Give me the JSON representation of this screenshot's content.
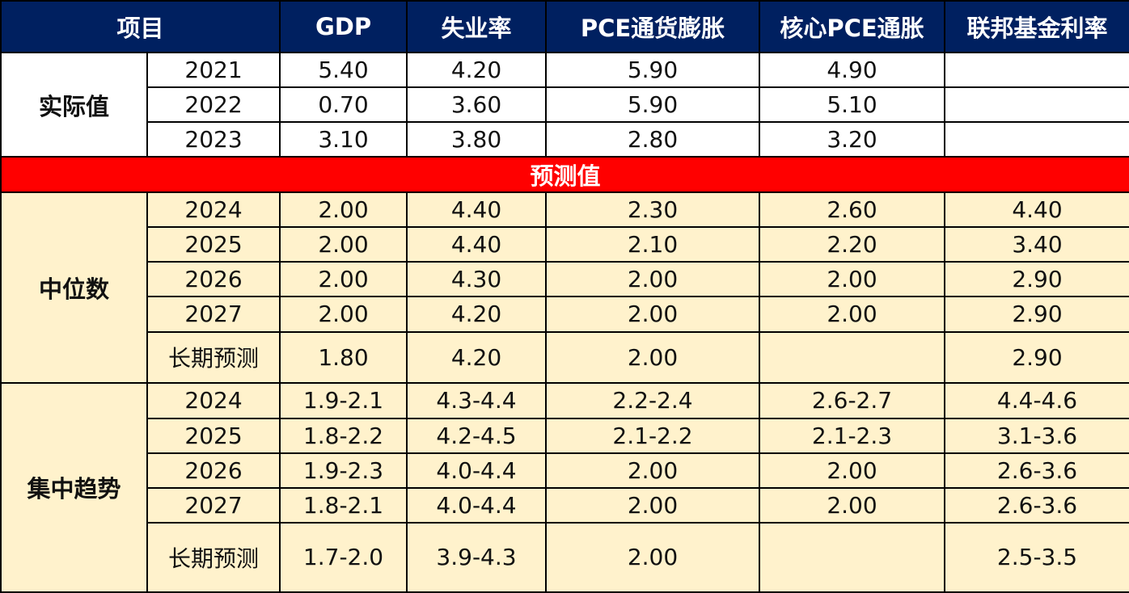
{
  "colors": {
    "header_bg": "#002060",
    "header_text": "#ffffff",
    "divider_bg": "#ff0000",
    "forecast_bg": "#fff2cc",
    "actual_bg": "#ffffff",
    "border": "#000000"
  },
  "table": {
    "headers": [
      "项目",
      "GDP",
      "失业率",
      "PCE通货膨胀",
      "核心PCE通胀",
      "联邦基金利率"
    ],
    "actual": {
      "label": "实际值",
      "rows": [
        {
          "period": "2021",
          "values": [
            "5.40",
            "4.20",
            "5.90",
            "4.90",
            ""
          ]
        },
        {
          "period": "2022",
          "values": [
            "0.70",
            "3.60",
            "5.90",
            "5.10",
            ""
          ]
        },
        {
          "period": "2023",
          "values": [
            "3.10",
            "3.80",
            "2.80",
            "3.20",
            ""
          ]
        }
      ]
    },
    "forecast_divider": "预测值",
    "median": {
      "label": "中位数",
      "rows": [
        {
          "period": "2024",
          "values": [
            "2.00",
            "4.40",
            "2.30",
            "2.60",
            "4.40"
          ]
        },
        {
          "period": "2025",
          "values": [
            "2.00",
            "4.40",
            "2.10",
            "2.20",
            "3.40"
          ]
        },
        {
          "period": "2026",
          "values": [
            "2.00",
            "4.30",
            "2.00",
            "2.00",
            "2.90"
          ]
        },
        {
          "period": "2027",
          "values": [
            "2.00",
            "4.20",
            "2.00",
            "2.00",
            "2.90"
          ]
        },
        {
          "period": "长期预测",
          "values": [
            "1.80",
            "4.20",
            "2.00",
            "",
            "2.90"
          ]
        }
      ]
    },
    "central": {
      "label": "集中趋势",
      "rows": [
        {
          "period": "2024",
          "values": [
            "1.9-2.1",
            "4.3-4.4",
            "2.2-2.4",
            "2.6-2.7",
            "4.4-4.6"
          ]
        },
        {
          "period": "2025",
          "values": [
            "1.8-2.2",
            "4.2-4.5",
            "2.1-2.2",
            "2.1-2.3",
            "3.1-3.6"
          ]
        },
        {
          "period": "2026",
          "values": [
            "1.9-2.3",
            "4.0-4.4",
            "2.00",
            "2.00",
            "2.6-3.6"
          ]
        },
        {
          "period": "2027",
          "values": [
            "1.8-2.1",
            "4.0-4.4",
            "2.00",
            "2.00",
            "2.6-3.6"
          ]
        },
        {
          "period": "长期预测",
          "values": [
            "1.7-2.0",
            "3.9-4.3",
            "2.00",
            "",
            "2.5-3.5"
          ]
        }
      ]
    }
  }
}
